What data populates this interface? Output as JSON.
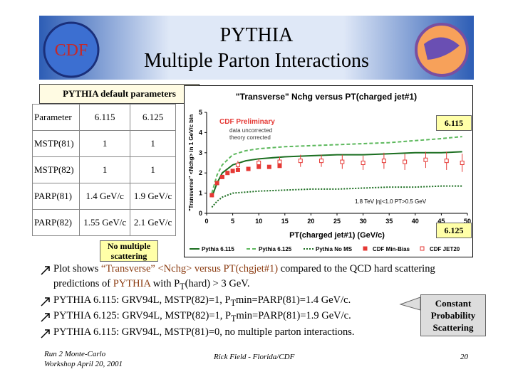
{
  "header": {
    "title": [
      "PYTHIA",
      "Multiple Parton Interactions"
    ],
    "logo_left": "CDF"
  },
  "banner": "PYTHIA default parameters",
  "table": {
    "header": [
      "Parameter",
      "6.115",
      "6.125"
    ],
    "rows": [
      [
        "MSTP(81)",
        "1",
        "1"
      ],
      [
        "MSTP(82)",
        "1",
        "1"
      ],
      [
        "PARP(81)",
        "1.4 GeV/c",
        "1.9 GeV/c"
      ],
      [
        "PARP(82)",
        "1.55 GeV/c",
        "2.1 GeV/c"
      ]
    ]
  },
  "chart_data": {
    "type": "line",
    "title": "\"Transverse\" Nchg versus PT(charged jet#1)",
    "x_label": "PT(charged jet#1)  (GeV/c)",
    "y_label": "\"Transverse\" <Nchg> in 1 GeV/c bin",
    "annotations": [
      "CDF Preliminary",
      "data uncorrected",
      "theory corrected",
      "1.8 TeV |η|<1.0 PT>0.5 GeV"
    ],
    "xlim": [
      0,
      50
    ],
    "ylim": [
      0,
      5
    ],
    "xticks": [
      0,
      5,
      10,
      15,
      20,
      25,
      30,
      35,
      40,
      45,
      50
    ],
    "yticks": [
      0,
      1,
      2,
      3,
      4,
      5
    ],
    "series": [
      {
        "name": "Pythia 6.115",
        "color": "#1b6e20",
        "dash": "none",
        "x": [
          1,
          2,
          3,
          5,
          7.5,
          10,
          15,
          20,
          25,
          30,
          35,
          40,
          45,
          49
        ],
        "values": [
          0.8,
          1.5,
          2.0,
          2.4,
          2.6,
          2.7,
          2.8,
          2.85,
          2.9,
          2.9,
          2.95,
          3.0,
          3.0,
          3.05
        ]
      },
      {
        "name": "Pythia 6.125",
        "color": "#5cb85c",
        "dash": "5,3",
        "x": [
          1,
          2,
          3,
          5,
          7.5,
          10,
          15,
          20,
          25,
          30,
          35,
          40,
          45,
          49
        ],
        "values": [
          1.0,
          1.9,
          2.4,
          2.9,
          3.1,
          3.2,
          3.3,
          3.35,
          3.4,
          3.45,
          3.5,
          3.6,
          3.7,
          3.8
        ]
      },
      {
        "name": "Pythia No MS",
        "color": "#1b6e20",
        "dash": "2,2",
        "x": [
          1,
          2,
          3,
          5,
          7.5,
          10,
          15,
          20,
          25,
          30,
          35,
          40,
          45,
          49
        ],
        "values": [
          0.3,
          0.6,
          0.8,
          1.0,
          1.05,
          1.1,
          1.15,
          1.2,
          1.2,
          1.25,
          1.3,
          1.3,
          1.35,
          1.35
        ]
      },
      {
        "name": "CDF Min-Bias",
        "color": "#e53935",
        "marker": "filled",
        "x": [
          1,
          2,
          3,
          4,
          5,
          6,
          8,
          10,
          12,
          14
        ],
        "values": [
          0.9,
          1.5,
          1.8,
          2.0,
          2.1,
          2.15,
          2.2,
          2.3,
          2.3,
          2.35
        ]
      },
      {
        "name": "CDF JET20",
        "color": "#e53935",
        "marker": "open",
        "x": [
          6,
          10,
          14,
          18,
          22,
          26,
          30,
          34,
          38,
          42,
          46,
          49
        ],
        "values": [
          2.4,
          2.5,
          2.55,
          2.6,
          2.6,
          2.55,
          2.5,
          2.6,
          2.55,
          2.65,
          2.6,
          2.5
        ],
        "errors": [
          0.2,
          0.2,
          0.25,
          0.3,
          0.3,
          0.35,
          0.35,
          0.4,
          0.4,
          0.4,
          0.45,
          0.45
        ]
      }
    ]
  },
  "callouts": {
    "v6115": "6.115",
    "v6125": "6.125",
    "no_ms": "No multiple scattering",
    "constant": "Constant Probability Scattering"
  },
  "bullets": [
    [
      "Plot shows ",
      "“Transverse” <Nchg> versus PT(chgjet#1)",
      " compared to the QCD hard scattering predictions of ",
      "PYTHIA",
      " with P",
      "T",
      "(hard) > 3 GeV."
    ],
    [
      "PYTHIA 6.115: GRV94L, MSTP(82)=1, P",
      "T",
      "min=PARP(81)=1.4 GeV/c."
    ],
    [
      "PYTHIA 6.125: GRV94L, MSTP(82)=1, P",
      "T",
      "min=PARP(81)=1.9 GeV/c."
    ],
    [
      "PYTHIA 6.115: GRV94L, MSTP(81)=0, no multiple parton interactions."
    ]
  ],
  "footer": {
    "left": [
      "Run 2 Monte-Carlo",
      "Workshop April 20, 2001"
    ],
    "center": "Rick Field - Florida/CDF",
    "page": "20"
  }
}
